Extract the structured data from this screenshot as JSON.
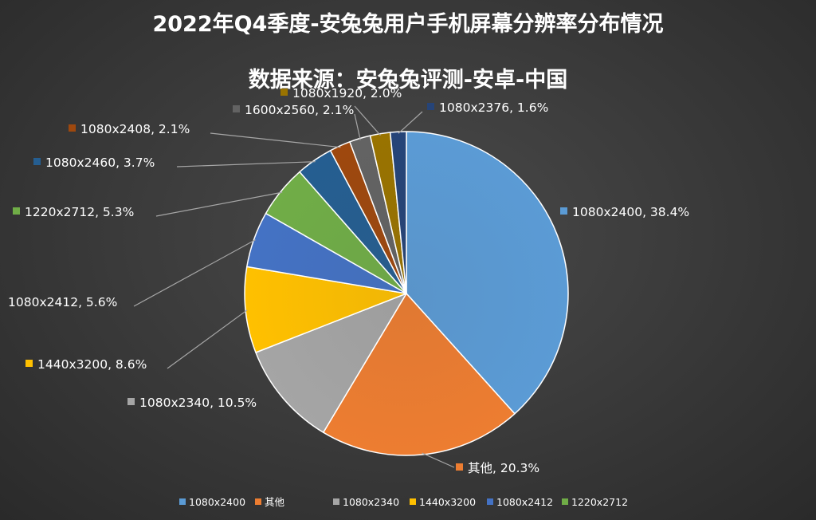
{
  "chart_data": {
    "type": "pie",
    "title": "2022年Q4季度-安兔兔用户手机屏幕分辨率分布情况",
    "subtitle": "数据来源：安兔兔评测-安卓-中国",
    "slices": [
      {
        "name": "1080x2400",
        "value": 38.4,
        "label": "1080x2400, 38.4%",
        "color": "#5b9bd5"
      },
      {
        "name": "其他",
        "value": 20.3,
        "label": "其他, 20.3%",
        "color": "#ed7d31"
      },
      {
        "name": "1080x2340",
        "value": 10.5,
        "label": "1080x2340, 10.5%",
        "color": "#a5a5a5"
      },
      {
        "name": "1440x3200",
        "value": 8.6,
        "label": "1440x3200, 8.6%",
        "color": "#ffc000"
      },
      {
        "name": "1080x2412",
        "value": 5.6,
        "label": "1080x2412, 5.6%",
        "color": "#4472c4"
      },
      {
        "name": "1220x2712",
        "value": 5.3,
        "label": "1220x2712, 5.3%",
        "color": "#70ad47"
      },
      {
        "name": "1080x2460",
        "value": 3.7,
        "label": "1080x2460, 3.7%",
        "color": "#255e91"
      },
      {
        "name": "1080x2408",
        "value": 2.1,
        "label": "1080x2408, 2.1%",
        "color": "#9e480e"
      },
      {
        "name": "1600x2560",
        "value": 2.1,
        "label": "1600x2560, 2.1%",
        "color": "#636363"
      },
      {
        "name": "1080x1920",
        "value": 2.0,
        "label": "1080x1920, 2.0%",
        "color": "#997300"
      },
      {
        "name": "1080x2376",
        "value": 1.6,
        "label": "1080x2376, 1.6%",
        "color": "#264478"
      }
    ],
    "legend": {
      "position": "bottom",
      "entries": [
        "1080x2400",
        "其他",
        "1080x2340",
        "1440x3200",
        "1080x2412",
        "1220x2712"
      ]
    }
  }
}
